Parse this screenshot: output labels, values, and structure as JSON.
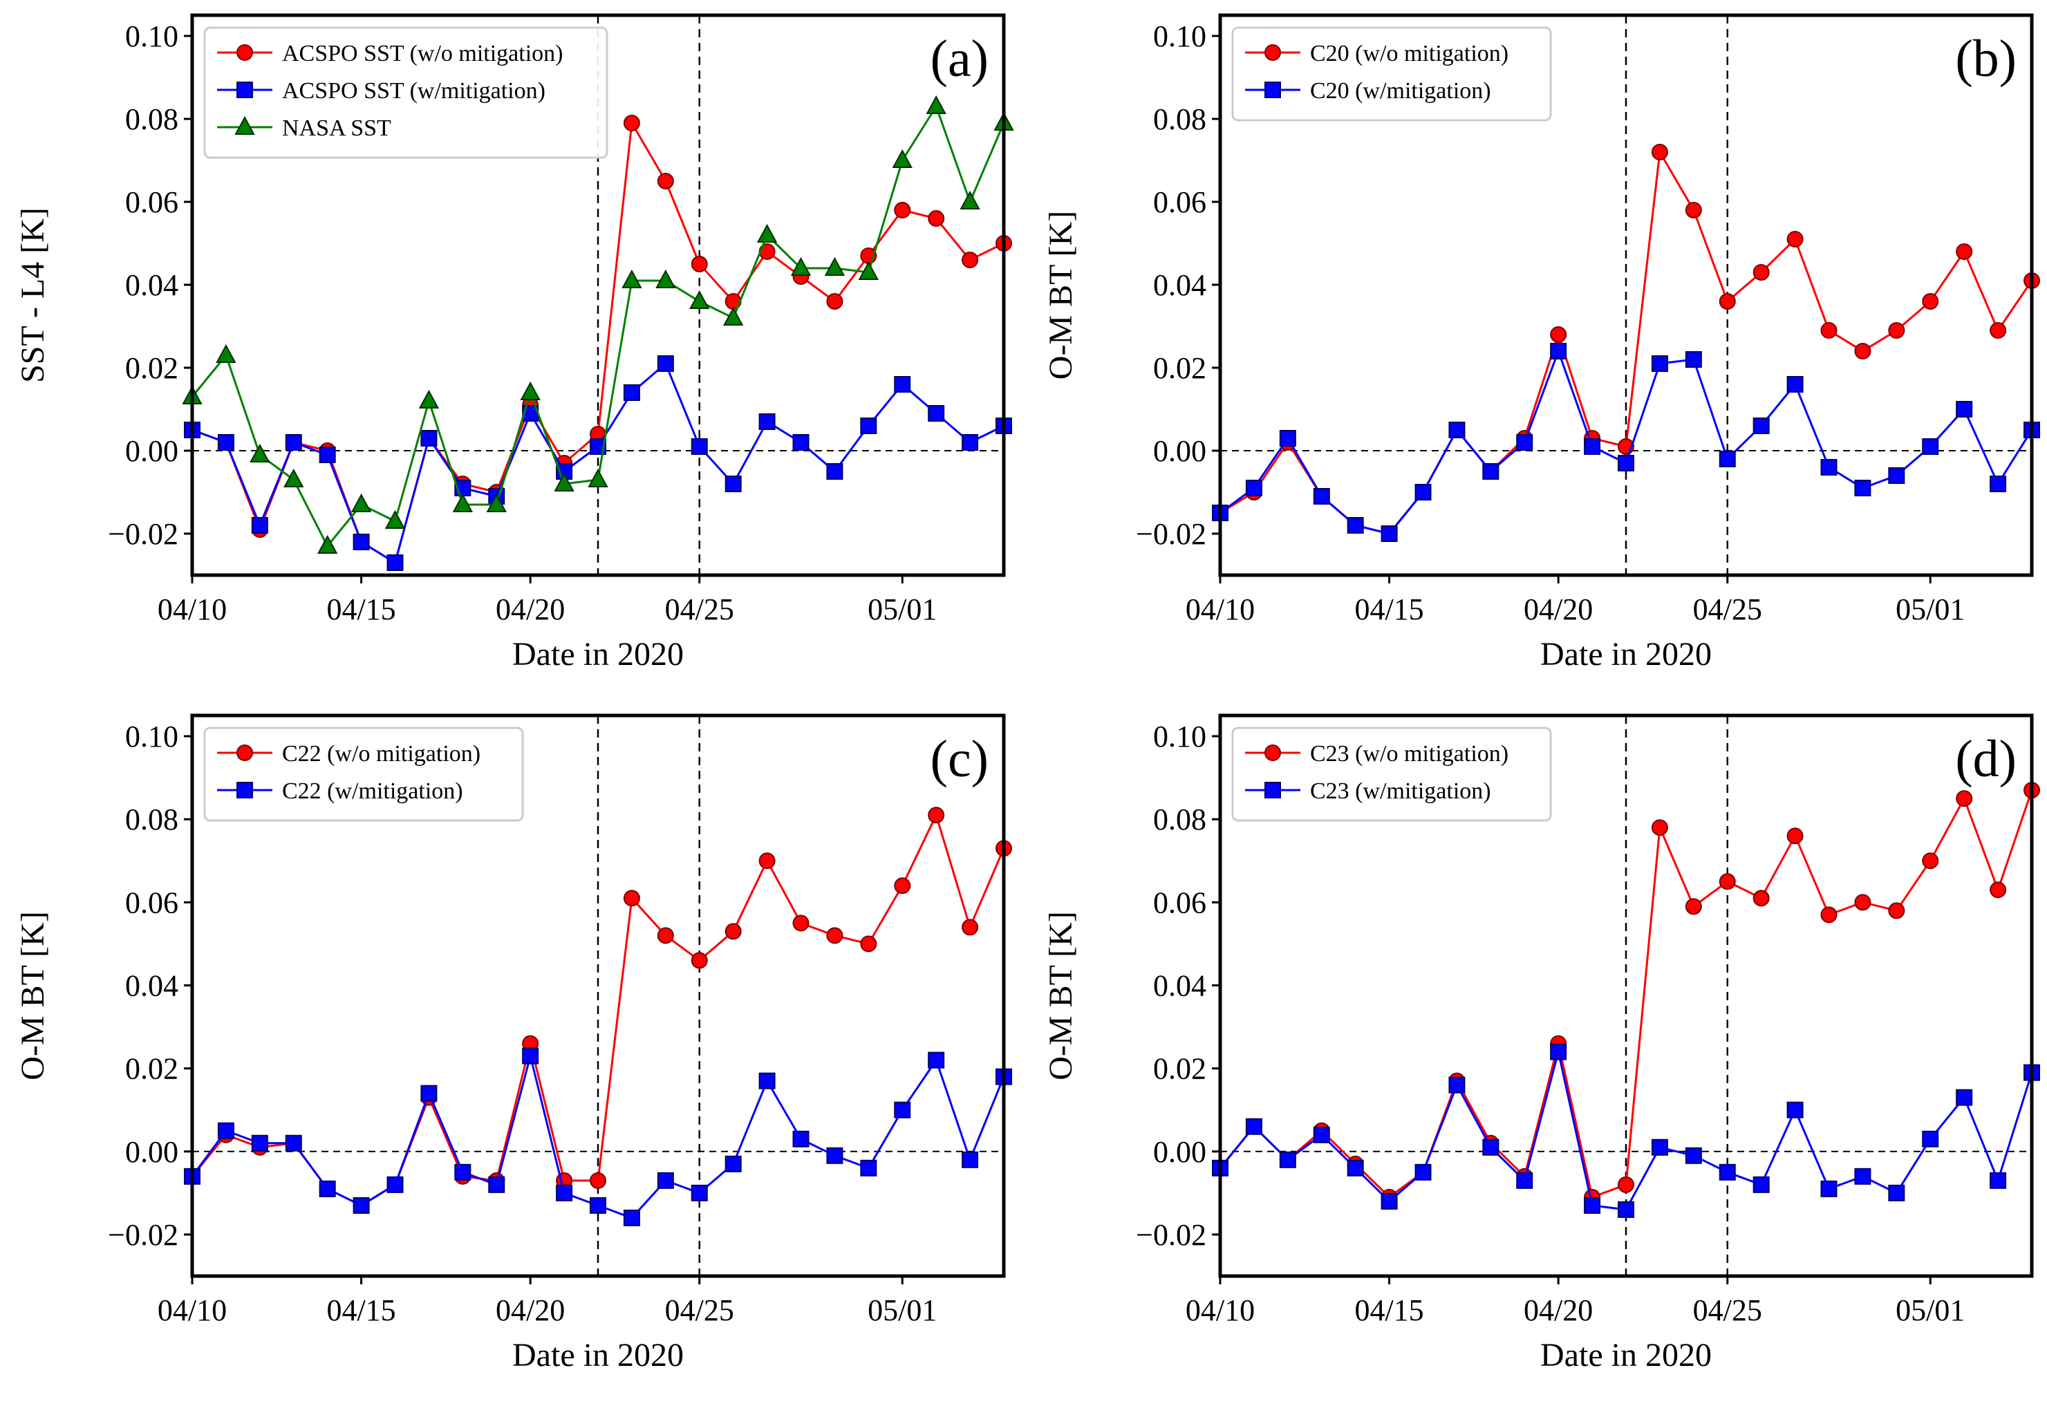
{
  "x_ticks": [
    {
      "date": "2020-04-10",
      "label": "04/10"
    },
    {
      "date": "2020-04-15",
      "label": "04/15"
    },
    {
      "date": "2020-04-20",
      "label": "04/20"
    },
    {
      "date": "2020-04-25",
      "label": "04/25"
    },
    {
      "date": "2020-05-01",
      "label": "05/01"
    }
  ],
  "y_ticks": [
    "-0.02",
    "0.00",
    "0.02",
    "0.04",
    "0.06",
    "0.08",
    "0.10"
  ],
  "colors": {
    "red": "#ff0000",
    "blue": "#0000ff",
    "green": "#008000"
  },
  "chart_data": [
    {
      "panel": "(a)",
      "type": "line",
      "xlabel": "Date in 2020",
      "ylabel": "SST - L4 [K]",
      "xlim": [
        "2020-04-10",
        "2020-05-04"
      ],
      "ylim": [
        -0.03,
        0.105
      ],
      "vlines": [
        "2020-04-22",
        "2020-04-25"
      ],
      "hline": 0,
      "series": [
        {
          "name": "ACSPO SST (w/o mitigation)",
          "color": "#ff0000",
          "marker": "circle",
          "x": [
            "2020-04-10",
            "2020-04-11",
            "2020-04-12",
            "2020-04-13",
            "2020-04-14",
            "2020-04-15",
            "2020-04-16",
            "2020-04-17",
            "2020-04-18",
            "2020-04-19",
            "2020-04-20",
            "2020-04-21",
            "2020-04-22",
            "2020-04-23",
            "2020-04-24",
            "2020-04-25",
            "2020-04-26",
            "2020-04-27",
            "2020-04-28",
            "2020-04-29",
            "2020-04-30",
            "2020-05-01",
            "2020-05-02",
            "2020-05-03",
            "2020-05-04"
          ],
          "y": [
            0.005,
            0.002,
            -0.019,
            0.002,
            0.0,
            -0.022,
            -0.027,
            0.003,
            -0.008,
            -0.01,
            0.011,
            -0.003,
            0.004,
            0.079,
            0.065,
            0.045,
            0.036,
            0.048,
            0.042,
            0.036,
            0.047,
            0.058,
            0.056,
            0.046,
            0.05
          ]
        },
        {
          "name": "ACSPO SST (w/mitigation)",
          "color": "#0000ff",
          "marker": "square",
          "x": [
            "2020-04-10",
            "2020-04-11",
            "2020-04-12",
            "2020-04-13",
            "2020-04-14",
            "2020-04-15",
            "2020-04-16",
            "2020-04-17",
            "2020-04-18",
            "2020-04-19",
            "2020-04-20",
            "2020-04-21",
            "2020-04-22",
            "2020-04-23",
            "2020-04-24",
            "2020-04-25",
            "2020-04-26",
            "2020-04-27",
            "2020-04-28",
            "2020-04-29",
            "2020-04-30",
            "2020-05-01",
            "2020-05-02",
            "2020-05-03",
            "2020-05-04"
          ],
          "y": [
            0.005,
            0.002,
            -0.018,
            0.002,
            -0.001,
            -0.022,
            -0.027,
            0.003,
            -0.009,
            -0.011,
            0.009,
            -0.005,
            0.001,
            0.014,
            0.021,
            0.001,
            -0.008,
            0.007,
            0.002,
            -0.005,
            0.006,
            0.016,
            0.009,
            0.002,
            0.006
          ]
        },
        {
          "name": "NASA SST",
          "color": "#008000",
          "marker": "triangle",
          "x": [
            "2020-04-10",
            "2020-04-11",
            "2020-04-12",
            "2020-04-13",
            "2020-04-14",
            "2020-04-15",
            "2020-04-16",
            "2020-04-17",
            "2020-04-18",
            "2020-04-19",
            "2020-04-20",
            "2020-04-21",
            "2020-04-22",
            "2020-04-23",
            "2020-04-24",
            "2020-04-25",
            "2020-04-26",
            "2020-04-27",
            "2020-04-28",
            "2020-04-29",
            "2020-04-30",
            "2020-05-01",
            "2020-05-02",
            "2020-05-03",
            "2020-05-04"
          ],
          "y": [
            0.013,
            0.023,
            -0.001,
            -0.007,
            -0.023,
            -0.013,
            -0.017,
            0.012,
            -0.013,
            -0.013,
            0.014,
            -0.008,
            -0.007,
            0.041,
            0.041,
            0.036,
            0.032,
            0.052,
            0.044,
            0.044,
            0.043,
            0.07,
            0.083,
            0.06,
            0.079
          ]
        }
      ]
    },
    {
      "panel": "(b)",
      "type": "line",
      "xlabel": "Date in 2020",
      "ylabel": "O-M BT [K]",
      "xlim": [
        "2020-04-10",
        "2020-05-04"
      ],
      "ylim": [
        -0.03,
        0.105
      ],
      "vlines": [
        "2020-04-22",
        "2020-04-25"
      ],
      "hline": 0,
      "series": [
        {
          "name": "C20 (w/o mitigation)",
          "color": "#ff0000",
          "marker": "circle",
          "x": [
            "2020-04-10",
            "2020-04-11",
            "2020-04-12",
            "2020-04-13",
            "2020-04-14",
            "2020-04-15",
            "2020-04-16",
            "2020-04-17",
            "2020-04-18",
            "2020-04-19",
            "2020-04-20",
            "2020-04-21",
            "2020-04-22",
            "2020-04-23",
            "2020-04-24",
            "2020-04-25",
            "2020-04-26",
            "2020-04-27",
            "2020-04-28",
            "2020-04-29",
            "2020-04-30",
            "2020-05-01",
            "2020-05-02",
            "2020-05-03",
            "2020-05-04"
          ],
          "y": [
            -0.015,
            -0.01,
            0.002,
            -0.011,
            -0.018,
            -0.02,
            -0.01,
            0.005,
            -0.005,
            0.003,
            0.028,
            0.003,
            0.001,
            0.072,
            0.058,
            0.036,
            0.043,
            0.051,
            0.029,
            0.024,
            0.029,
            0.036,
            0.048,
            0.029,
            0.041
          ]
        },
        {
          "name": "C20 (w/mitigation)",
          "color": "#0000ff",
          "marker": "square",
          "x": [
            "2020-04-10",
            "2020-04-11",
            "2020-04-12",
            "2020-04-13",
            "2020-04-14",
            "2020-04-15",
            "2020-04-16",
            "2020-04-17",
            "2020-04-18",
            "2020-04-19",
            "2020-04-20",
            "2020-04-21",
            "2020-04-22",
            "2020-04-23",
            "2020-04-24",
            "2020-04-25",
            "2020-04-26",
            "2020-04-27",
            "2020-04-28",
            "2020-04-29",
            "2020-04-30",
            "2020-05-01",
            "2020-05-02",
            "2020-05-03",
            "2020-05-04"
          ],
          "y": [
            -0.015,
            -0.009,
            0.003,
            -0.011,
            -0.018,
            -0.02,
            -0.01,
            0.005,
            -0.005,
            0.002,
            0.024,
            0.001,
            -0.003,
            0.021,
            0.022,
            -0.002,
            0.006,
            0.016,
            -0.004,
            -0.009,
            -0.006,
            0.001,
            0.01,
            -0.008,
            0.005
          ]
        }
      ]
    },
    {
      "panel": "(c)",
      "type": "line",
      "xlabel": "Date in 2020",
      "ylabel": "O-M BT [K]",
      "xlim": [
        "2020-04-10",
        "2020-05-04"
      ],
      "ylim": [
        -0.03,
        0.105
      ],
      "vlines": [
        "2020-04-22",
        "2020-04-25"
      ],
      "hline": 0,
      "series": [
        {
          "name": "C22 (w/o mitigation)",
          "color": "#ff0000",
          "marker": "circle",
          "x": [
            "2020-04-10",
            "2020-04-11",
            "2020-04-12",
            "2020-04-13",
            "2020-04-14",
            "2020-04-15",
            "2020-04-16",
            "2020-04-17",
            "2020-04-18",
            "2020-04-19",
            "2020-04-20",
            "2020-04-21",
            "2020-04-22",
            "2020-04-23",
            "2020-04-24",
            "2020-04-25",
            "2020-04-26",
            "2020-04-27",
            "2020-04-28",
            "2020-04-29",
            "2020-04-30",
            "2020-05-01",
            "2020-05-02",
            "2020-05-03",
            "2020-05-04"
          ],
          "y": [
            -0.006,
            0.004,
            0.001,
            0.002,
            -0.009,
            -0.013,
            -0.008,
            0.013,
            -0.006,
            -0.007,
            0.026,
            -0.007,
            -0.007,
            0.061,
            0.052,
            0.046,
            0.053,
            0.07,
            0.055,
            0.052,
            0.05,
            0.064,
            0.081,
            0.054,
            0.073
          ]
        },
        {
          "name": "C22 (w/mitigation)",
          "color": "#0000ff",
          "marker": "square",
          "x": [
            "2020-04-10",
            "2020-04-11",
            "2020-04-12",
            "2020-04-13",
            "2020-04-14",
            "2020-04-15",
            "2020-04-16",
            "2020-04-17",
            "2020-04-18",
            "2020-04-19",
            "2020-04-20",
            "2020-04-21",
            "2020-04-22",
            "2020-04-23",
            "2020-04-24",
            "2020-04-25",
            "2020-04-26",
            "2020-04-27",
            "2020-04-28",
            "2020-04-29",
            "2020-04-30",
            "2020-05-01",
            "2020-05-02",
            "2020-05-03",
            "2020-05-04"
          ],
          "y": [
            -0.006,
            0.005,
            0.002,
            0.002,
            -0.009,
            -0.013,
            -0.008,
            0.014,
            -0.005,
            -0.008,
            0.023,
            -0.01,
            -0.013,
            -0.016,
            -0.007,
            -0.01,
            -0.003,
            0.017,
            0.003,
            -0.001,
            -0.004,
            0.01,
            0.022,
            -0.002,
            0.018
          ]
        }
      ]
    },
    {
      "panel": "(d)",
      "type": "line",
      "xlabel": "Date in 2020",
      "ylabel": "O-M BT [K]",
      "xlim": [
        "2020-04-10",
        "2020-05-04"
      ],
      "ylim": [
        -0.03,
        0.105
      ],
      "vlines": [
        "2020-04-22",
        "2020-04-25"
      ],
      "hline": 0,
      "series": [
        {
          "name": "C23 (w/o mitigation)",
          "color": "#ff0000",
          "marker": "circle",
          "x": [
            "2020-04-10",
            "2020-04-11",
            "2020-04-12",
            "2020-04-13",
            "2020-04-14",
            "2020-04-15",
            "2020-04-16",
            "2020-04-17",
            "2020-04-18",
            "2020-04-19",
            "2020-04-20",
            "2020-04-21",
            "2020-04-22",
            "2020-04-23",
            "2020-04-24",
            "2020-04-25",
            "2020-04-26",
            "2020-04-27",
            "2020-04-28",
            "2020-04-29",
            "2020-04-30",
            "2020-05-01",
            "2020-05-02",
            "2020-05-03",
            "2020-05-04"
          ],
          "y": [
            -0.004,
            0.006,
            -0.002,
            0.005,
            -0.003,
            -0.011,
            -0.005,
            0.017,
            0.002,
            -0.006,
            0.026,
            -0.011,
            -0.008,
            0.078,
            0.059,
            0.065,
            0.061,
            0.076,
            0.057,
            0.06,
            0.058,
            0.07,
            0.085,
            0.063,
            0.087
          ]
        },
        {
          "name": "C23 (w/mitigation)",
          "color": "#0000ff",
          "marker": "square",
          "x": [
            "2020-04-10",
            "2020-04-11",
            "2020-04-12",
            "2020-04-13",
            "2020-04-14",
            "2020-04-15",
            "2020-04-16",
            "2020-04-17",
            "2020-04-18",
            "2020-04-19",
            "2020-04-20",
            "2020-04-21",
            "2020-04-22",
            "2020-04-23",
            "2020-04-24",
            "2020-04-25",
            "2020-04-26",
            "2020-04-27",
            "2020-04-28",
            "2020-04-29",
            "2020-04-30",
            "2020-05-01",
            "2020-05-02",
            "2020-05-03",
            "2020-05-04"
          ],
          "y": [
            -0.004,
            0.006,
            -0.002,
            0.004,
            -0.004,
            -0.012,
            -0.005,
            0.016,
            0.001,
            -0.007,
            0.024,
            -0.013,
            -0.014,
            0.001,
            -0.001,
            -0.005,
            -0.008,
            0.01,
            -0.009,
            -0.006,
            -0.01,
            0.003,
            0.013,
            -0.007,
            0.019
          ]
        }
      ]
    }
  ]
}
